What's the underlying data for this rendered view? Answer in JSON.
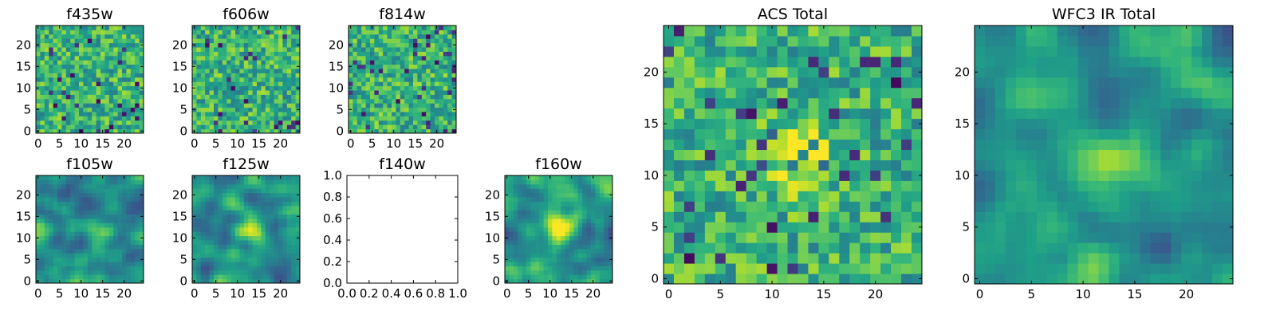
{
  "chart_data": [
    {
      "type": "heatmap",
      "title": "f435w",
      "xlim": [
        0,
        24
      ],
      "ylim": [
        0,
        24
      ],
      "xticks": [
        0,
        5,
        10,
        15,
        20
      ],
      "yticks": [
        0,
        5,
        10,
        15,
        20
      ],
      "colormap": "viridis",
      "pattern": "noise"
    },
    {
      "type": "heatmap",
      "title": "f606w",
      "xlim": [
        0,
        24
      ],
      "ylim": [
        0,
        24
      ],
      "xticks": [
        0,
        5,
        10,
        15,
        20
      ],
      "yticks": [
        0,
        5,
        10,
        15,
        20
      ],
      "colormap": "viridis",
      "pattern": "noise"
    },
    {
      "type": "heatmap",
      "title": "f814w",
      "xlim": [
        0,
        24
      ],
      "ylim": [
        0,
        24
      ],
      "xticks": [
        0,
        5,
        10,
        15,
        20
      ],
      "yticks": [
        0,
        5,
        10,
        15,
        20
      ],
      "colormap": "viridis",
      "pattern": "noise"
    },
    {
      "type": "heatmap",
      "title": "f105w",
      "xlim": [
        0,
        24
      ],
      "ylim": [
        0,
        24
      ],
      "xticks": [
        0,
        5,
        10,
        15,
        20
      ],
      "yticks": [
        0,
        5,
        10,
        15,
        20
      ],
      "colormap": "viridis",
      "pattern": "smooth"
    },
    {
      "type": "heatmap",
      "title": "f125w",
      "xlim": [
        0,
        24
      ],
      "ylim": [
        0,
        24
      ],
      "xticks": [
        0,
        5,
        10,
        15,
        20
      ],
      "yticks": [
        0,
        5,
        10,
        15,
        20
      ],
      "colormap": "viridis",
      "pattern": "smooth-center"
    },
    {
      "type": "empty",
      "title": "f140w",
      "xlim": [
        0.0,
        1.0
      ],
      "ylim": [
        0.0,
        1.0
      ],
      "xticks": [
        "0.0",
        "0.2",
        "0.4",
        "0.6",
        "0.8",
        "1.0"
      ],
      "yticks": [
        "0.0",
        "0.2",
        "0.4",
        "0.6",
        "0.8",
        "1.0"
      ]
    },
    {
      "type": "heatmap",
      "title": "f160w",
      "xlim": [
        0,
        24
      ],
      "ylim": [
        0,
        24
      ],
      "xticks": [
        0,
        5,
        10,
        15,
        20
      ],
      "yticks": [
        0,
        5,
        10,
        15,
        20
      ],
      "colormap": "viridis",
      "pattern": "smooth-center"
    },
    {
      "type": "heatmap",
      "title": "ACS Total",
      "xlim": [
        0,
        24
      ],
      "ylim": [
        0,
        24
      ],
      "xticks": [
        0,
        5,
        10,
        15,
        20
      ],
      "yticks": [
        0,
        5,
        10,
        15,
        20
      ],
      "colormap": "viridis",
      "pattern": "noise-center"
    },
    {
      "type": "heatmap",
      "title": "WFC3 IR Total",
      "xlim": [
        0,
        24
      ],
      "ylim": [
        0,
        24
      ],
      "xticks": [
        0,
        5,
        10,
        15,
        20
      ],
      "yticks": [
        0,
        5,
        10,
        15,
        20
      ],
      "colormap": "viridis",
      "pattern": "smooth-center"
    }
  ]
}
